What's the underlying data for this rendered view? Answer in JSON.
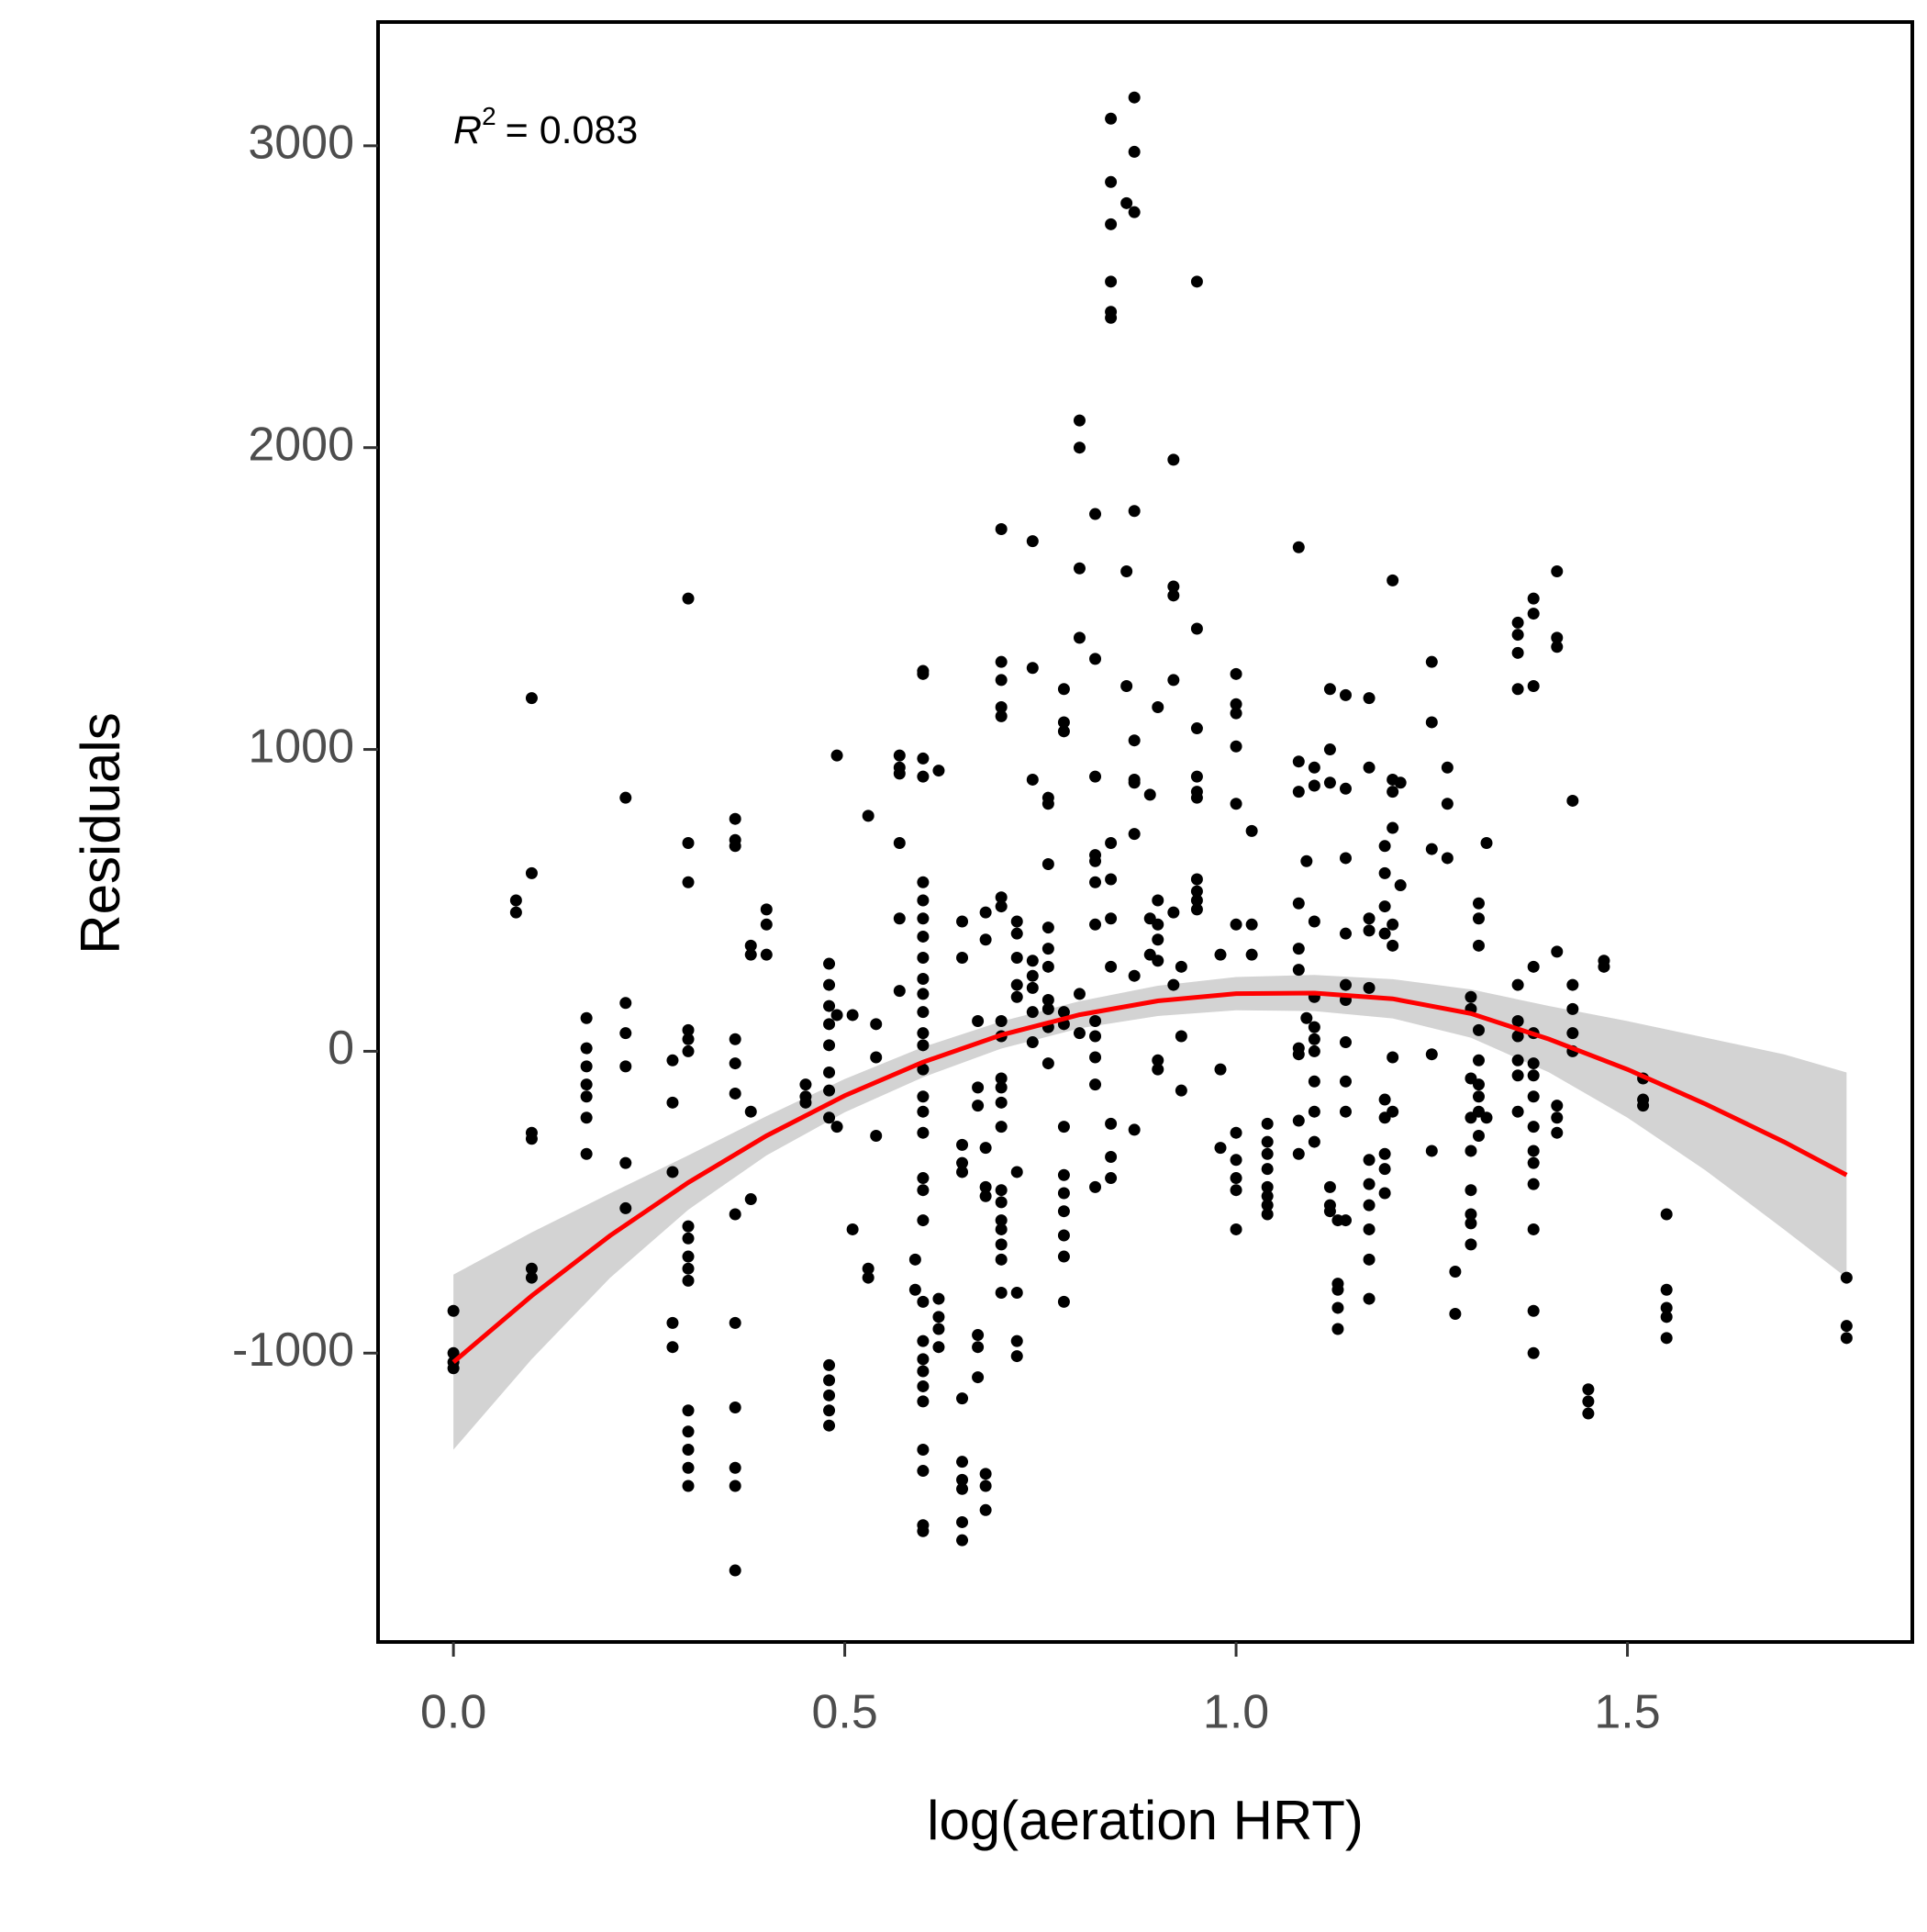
{
  "chart_data": {
    "type": "scatter",
    "x_label": "log(aeration HRT)",
    "y_label": "Residuals",
    "annotation": {
      "symbol": "R",
      "exponent": "2",
      "text": "= 0.083"
    },
    "xlim": [
      -0.0963,
      1.864
    ],
    "ylim": [
      -1957,
      3410
    ],
    "xticks": [
      {
        "value": 0,
        "label": "0.0"
      },
      {
        "value": 0.5,
        "label": "0.5"
      },
      {
        "value": 1,
        "label": "1.0"
      },
      {
        "value": 1.5,
        "label": "1.5"
      }
    ],
    "yticks": [
      -1000,
      0,
      1000,
      2000,
      3000
    ],
    "series": [
      {
        "color": "#000000",
        "x": [
          0,
          0,
          0,
          0,
          0.08,
          0.08,
          0.1,
          0.1,
          0.1,
          0.1,
          0.1,
          0.1,
          0.17,
          0.17,
          0.17,
          0.17,
          0.17,
          0.17,
          0.17,
          0.22,
          0.22,
          0.22,
          0.22,
          0.22,
          0.22,
          0.28,
          0.28,
          0.28,
          0.28,
          0.28,
          0.3,
          0.3,
          0.3,
          0.3,
          0.3,
          0.3,
          0.3,
          0.3,
          0.3,
          0.3,
          0.3,
          0.3,
          0.3,
          0.3,
          0.3,
          0.3,
          0.36,
          0.36,
          0.36,
          0.36,
          0.36,
          0.36,
          0.36,
          0.36,
          0.36,
          0.36,
          0.36,
          0.36,
          0.38,
          0.38,
          0.38,
          0.38,
          0.4,
          0.4,
          0.4,
          0.45,
          0.45,
          0.45,
          0.48,
          0.48,
          0.48,
          0.48,
          0.48,
          0.48,
          0.48,
          0.48,
          0.48,
          0.48,
          0.48,
          0.48,
          0.48,
          0.49,
          0.49,
          0.49,
          0.51,
          0.51,
          0.53,
          0.53,
          0.53,
          0.54,
          0.54,
          0.54,
          0.57,
          0.57,
          0.57,
          0.57,
          0.57,
          0.57,
          0.59,
          0.59,
          0.6,
          0.6,
          0.6,
          0.6,
          0.6,
          0.6,
          0.6,
          0.6,
          0.6,
          0.6,
          0.6,
          0.6,
          0.6,
          0.6,
          0.6,
          0.6,
          0.6,
          0.6,
          0.6,
          0.6,
          0.6,
          0.6,
          0.6,
          0.6,
          0.6,
          0.6,
          0.6,
          0.6,
          0.6,
          0.6,
          0.6,
          0.62,
          0.62,
          0.62,
          0.62,
          0.62,
          0.65,
          0.65,
          0.65,
          0.65,
          0.65,
          0.65,
          0.65,
          0.65,
          0.65,
          0.65,
          0.65,
          0.67,
          0.67,
          0.67,
          0.67,
          0.67,
          0.67,
          0.68,
          0.68,
          0.68,
          0.68,
          0.68,
          0.68,
          0.68,
          0.68,
          0.7,
          0.7,
          0.7,
          0.7,
          0.7,
          0.7,
          0.7,
          0.7,
          0.7,
          0.7,
          0.7,
          0.7,
          0.7,
          0.7,
          0.7,
          0.7,
          0.7,
          0.7,
          0.7,
          0.7,
          0.72,
          0.72,
          0.72,
          0.72,
          0.72,
          0.72,
          0.72,
          0.72,
          0.72,
          0.74,
          0.74,
          0.74,
          0.74,
          0.74,
          0.74,
          0.74,
          0.74,
          0.76,
          0.76,
          0.76,
          0.76,
          0.76,
          0.76,
          0.76,
          0.76,
          0.76,
          0.76,
          0.78,
          0.78,
          0.78,
          0.78,
          0.78,
          0.78,
          0.78,
          0.78,
          0.78,
          0.78,
          0.78,
          0.78,
          0.8,
          0.8,
          0.8,
          0.8,
          0.8,
          0.8,
          0.82,
          0.82,
          0.82,
          0.82,
          0.82,
          0.82,
          0.82,
          0.82,
          0.82,
          0.82,
          0.82,
          0.82,
          0.84,
          0.84,
          0.84,
          0.84,
          0.84,
          0.84,
          0.84,
          0.84,
          0.84,
          0.84,
          0.84,
          0.84,
          0.84,
          0.86,
          0.86,
          0.86,
          0.87,
          0.87,
          0.87,
          0.87,
          0.87,
          0.87,
          0.87,
          0.87,
          0.87,
          0.87,
          0.89,
          0.89,
          0.89,
          0.9,
          0.9,
          0.9,
          0.9,
          0.9,
          0.9,
          0.9,
          0.92,
          0.92,
          0.92,
          0.92,
          0.92,
          0.92,
          0.93,
          0.93,
          0.93,
          0.95,
          0.95,
          0.95,
          0.95,
          0.95,
          0.95,
          0.95,
          0.95,
          0.95,
          0.95,
          0.98,
          0.98,
          0.98,
          1,
          1,
          1,
          1,
          1,
          1,
          1,
          1,
          1,
          1,
          1,
          1.02,
          1.02,
          1.02,
          1.04,
          1.04,
          1.04,
          1.04,
          1.04,
          1.04,
          1.04,
          1.04,
          1.08,
          1.08,
          1.08,
          1.08,
          1.08,
          1.08,
          1.08,
          1.08,
          1.08,
          1.08,
          1.09,
          1.09,
          1.1,
          1.1,
          1.1,
          1.1,
          1.1,
          1.1,
          1.1,
          1.1,
          1.1,
          1.1,
          1.12,
          1.12,
          1.12,
          1.12,
          1.12,
          1.12,
          1.13,
          1.13,
          1.13,
          1.13,
          1.13,
          1.14,
          1.14,
          1.14,
          1.14,
          1.14,
          1.14,
          1.14,
          1.14,
          1.14,
          1.14,
          1.17,
          1.17,
          1.17,
          1.17,
          1.17,
          1.17,
          1.17,
          1.17,
          1.17,
          1.17,
          1.17,
          1.19,
          1.19,
          1.19,
          1.19,
          1.19,
          1.19,
          1.19,
          1.19,
          1.19,
          1.2,
          1.2,
          1.2,
          1.2,
          1.2,
          1.2,
          1.2,
          1.2,
          1.21,
          1.21,
          1.25,
          1.25,
          1.25,
          1.25,
          1.25,
          1.27,
          1.27,
          1.27,
          1.28,
          1.28,
          1.3,
          1.3,
          1.3,
          1.3,
          1.3,
          1.3,
          1.3,
          1.3,
          1.3,
          1.31,
          1.31,
          1.31,
          1.31,
          1.31,
          1.31,
          1.31,
          1.31,
          1.31,
          1.32,
          1.32,
          1.36,
          1.36,
          1.36,
          1.36,
          1.36,
          1.36,
          1.36,
          1.36,
          1.36,
          1.36,
          1.38,
          1.38,
          1.38,
          1.38,
          1.38,
          1.38,
          1.38,
          1.38,
          1.38,
          1.38,
          1.38,
          1.38,
          1.38,
          1.38,
          1.38,
          1.41,
          1.41,
          1.41,
          1.41,
          1.41,
          1.41,
          1.41,
          1.43,
          1.43,
          1.43,
          1.43,
          1.43,
          1.45,
          1.45,
          1.45,
          1.47,
          1.47,
          1.52,
          1.52,
          1.52,
          1.55,
          1.55,
          1.55,
          1.55,
          1.55,
          1.78,
          1.78,
          1.78
        ],
        "values": [
          -1000,
          -1030,
          -1050,
          -860,
          500,
          460,
          1170,
          590,
          -290,
          -270,
          -720,
          -750,
          110,
          10,
          -50,
          -110,
          -150,
          -220,
          -340,
          840,
          160,
          60,
          -50,
          -370,
          -520,
          -30,
          -170,
          -400,
          -900,
          -980,
          1500,
          690,
          560,
          70,
          40,
          0,
          -580,
          -620,
          -680,
          -720,
          -760,
          -1190,
          -1260,
          -1320,
          -1380,
          -1440,
          770,
          700,
          680,
          40,
          -40,
          -140,
          -540,
          -900,
          -1180,
          -1380,
          -1440,
          -1720,
          350,
          320,
          -200,
          -490,
          470,
          420,
          320,
          -110,
          -150,
          -170,
          290,
          220,
          150,
          90,
          20,
          -70,
          -130,
          -220,
          -1040,
          -1090,
          -1140,
          -1190,
          -1240,
          980,
          120,
          -250,
          120,
          -590,
          780,
          -720,
          -750,
          90,
          -20,
          -280,
          980,
          940,
          920,
          690,
          440,
          200,
          -690,
          -790,
          1260,
          1250,
          970,
          910,
          560,
          500,
          440,
          380,
          310,
          240,
          190,
          130,
          60,
          20,
          -60,
          -150,
          -200,
          -270,
          -420,
          -460,
          -560,
          -830,
          -960,
          -1020,
          -1060,
          -1110,
          -1160,
          -1320,
          -1390,
          -1570,
          -1590,
          930,
          -820,
          -880,
          -920,
          -980,
          430,
          310,
          -310,
          -370,
          -400,
          -1150,
          -1360,
          -1420,
          -1450,
          -1560,
          -1620,
          100,
          -120,
          -180,
          -940,
          -980,
          -1080,
          460,
          370,
          -320,
          -450,
          -480,
          -1400,
          -1440,
          -1520,
          1730,
          1290,
          1230,
          1140,
          1110,
          510,
          480,
          100,
          50,
          -90,
          -120,
          -170,
          -250,
          -460,
          -500,
          -560,
          -590,
          -640,
          -690,
          -800,
          430,
          390,
          310,
          220,
          180,
          -400,
          -800,
          -960,
          -1010,
          1690,
          1270,
          900,
          300,
          250,
          210,
          130,
          30,
          840,
          820,
          620,
          410,
          340,
          280,
          170,
          140,
          80,
          -40,
          1200,
          1090,
          1060,
          130,
          90,
          -250,
          -410,
          -470,
          -530,
          -610,
          -680,
          -830,
          2090,
          2000,
          1600,
          1370,
          190,
          60,
          1780,
          1300,
          910,
          650,
          630,
          560,
          420,
          100,
          50,
          -20,
          -110,
          -450,
          3090,
          2880,
          2740,
          2550,
          2450,
          2430,
          690,
          570,
          440,
          280,
          -240,
          -350,
          -420,
          2810,
          1590,
          1210,
          3160,
          2980,
          2780,
          1790,
          1030,
          900,
          890,
          720,
          250,
          -260,
          850,
          440,
          320,
          1140,
          500,
          420,
          370,
          300,
          -30,
          -60,
          1960,
          1540,
          1510,
          1230,
          460,
          220,
          280,
          50,
          -130,
          2550,
          1400,
          1070,
          910,
          860,
          840,
          570,
          530,
          500,
          470,
          320,
          -60,
          -320,
          1250,
          1150,
          1120,
          1010,
          820,
          420,
          -270,
          -360,
          -420,
          -460,
          -590,
          730,
          420,
          320,
          -240,
          -300,
          -340,
          -390,
          -450,
          -480,
          -510,
          -540,
          1670,
          960,
          860,
          490,
          340,
          270,
          10,
          -10,
          -230,
          -340,
          630,
          110,
          940,
          880,
          430,
          180,
          80,
          40,
          0,
          -100,
          -200,
          -300,
          1200,
          1000,
          890,
          -450,
          -510,
          -530,
          -560,
          -770,
          -790,
          -850,
          -920,
          1180,
          870,
          640,
          390,
          220,
          170,
          30,
          -100,
          -200,
          -560,
          1170,
          940,
          440,
          400,
          210,
          -360,
          -440,
          -510,
          -590,
          -690,
          -820,
          680,
          590,
          480,
          390,
          -160,
          -220,
          -340,
          -390,
          -470,
          1560,
          900,
          860,
          740,
          420,
          350,
          -20,
          -200,
          890,
          550,
          1290,
          1090,
          670,
          -10,
          -330,
          940,
          820,
          640,
          -730,
          -870,
          180,
          140,
          -90,
          -220,
          -330,
          -460,
          -540,
          -570,
          -640,
          490,
          440,
          350,
          70,
          -30,
          -110,
          -150,
          -200,
          -280,
          690,
          -220,
          1420,
          1380,
          1320,
          1200,
          220,
          100,
          50,
          -30,
          -80,
          -200,
          1500,
          1450,
          1210,
          280,
          60,
          -40,
          -80,
          -150,
          -250,
          -330,
          -370,
          -440,
          -590,
          -860,
          -1000,
          1590,
          1370,
          1340,
          330,
          -180,
          -220,
          -270,
          830,
          220,
          140,
          60,
          0,
          -1120,
          -1160,
          -1200,
          300,
          280,
          -90,
          -160,
          -180,
          -540,
          -790,
          -850,
          -880,
          -950,
          -750,
          -910,
          -950
        ]
      },
      {
        "type": "line",
        "color": "#ff0000",
        "band_color": "#d3d3d3",
        "x": [
          0,
          0.1,
          0.2,
          0.3,
          0.4,
          0.5,
          0.6,
          0.7,
          0.8,
          0.9,
          1,
          1.1,
          1.2,
          1.3,
          1.4,
          1.5,
          1.6,
          1.7,
          1.78
        ],
        "values": [
          -1030,
          -810,
          -611,
          -435,
          -280,
          -147,
          -36,
          54,
          121,
          167,
          191,
          193,
          174,
          125,
          40,
          -60,
          -175,
          -300,
          -410
        ],
        "lower": [
          -1320,
          -1020,
          -751,
          -525,
          -345,
          -202,
          -86,
          9,
          76,
          117,
          136,
          133,
          109,
          45,
          -70,
          -220,
          -395,
          -590,
          -750
        ],
        "upper": [
          -740,
          -600,
          -471,
          -345,
          -215,
          -92,
          14,
          99,
          166,
          217,
          246,
          253,
          239,
          205,
          150,
          100,
          45,
          -10,
          -70
        ]
      }
    ]
  }
}
